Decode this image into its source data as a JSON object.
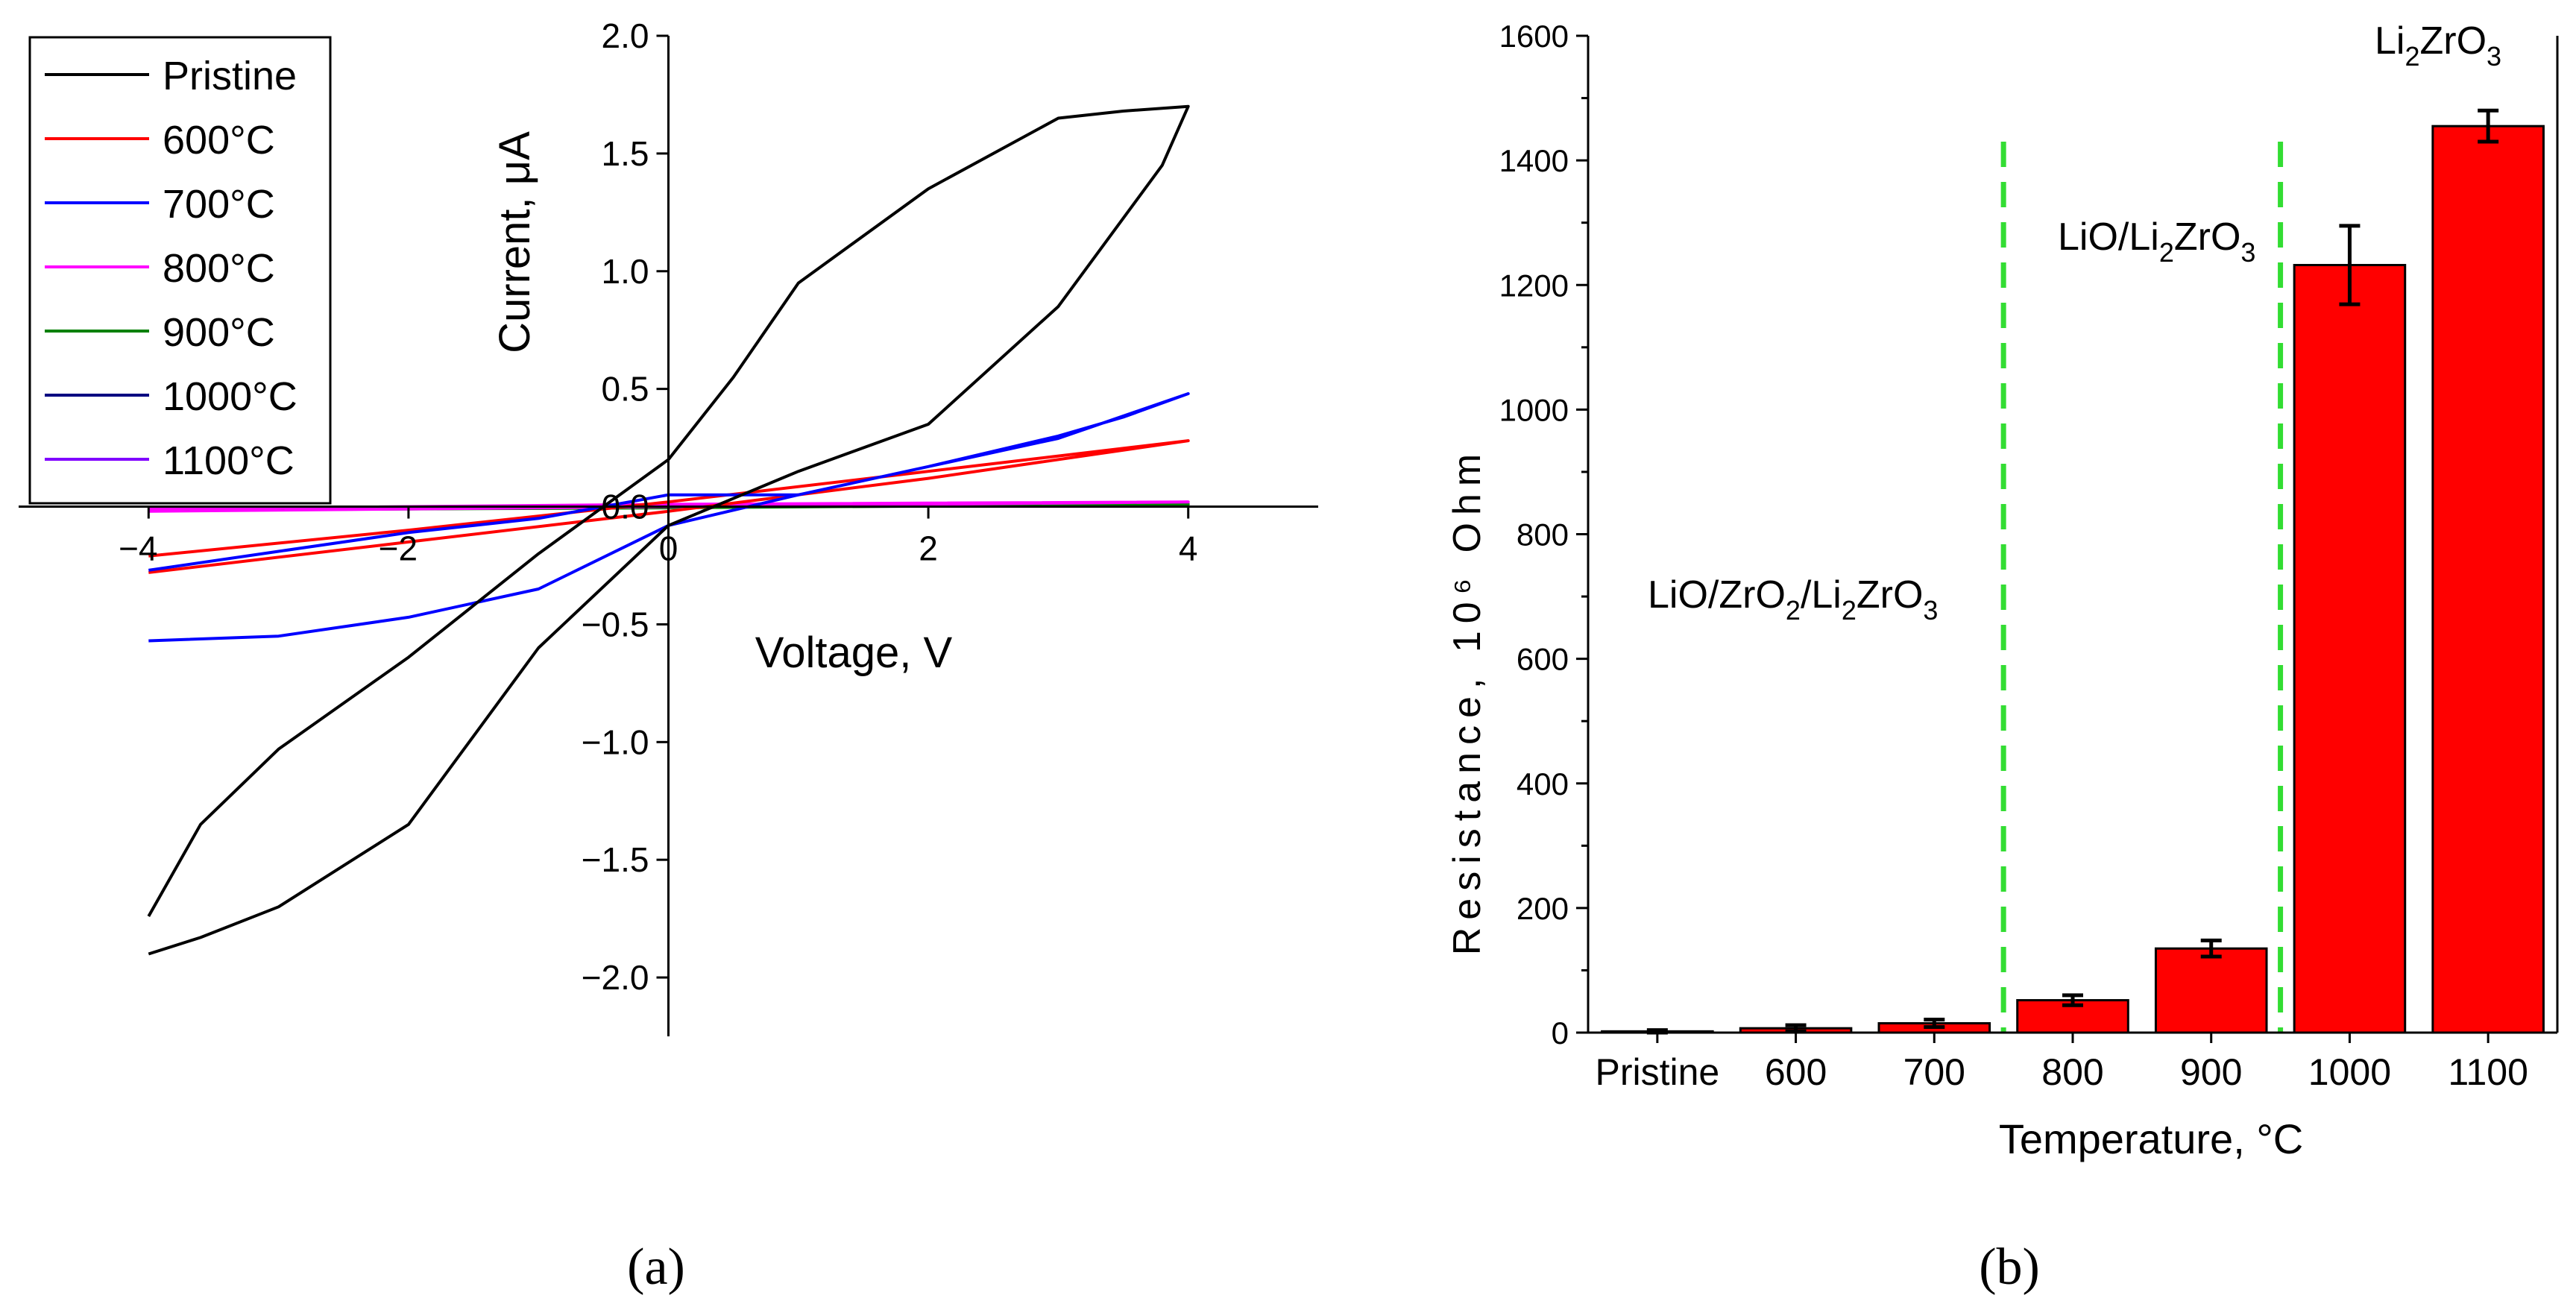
{
  "colors": {
    "pristine": "#000000",
    "c600": "#ff0000",
    "c700": "#0000ff",
    "c800": "#ff00ff",
    "c900": "#008000",
    "c1000": "#000080",
    "c1100": "#8000ff",
    "bar_fill": "#ff0000",
    "divider": "#33dd33"
  },
  "chart_data": [
    {
      "panel": "a",
      "caption": "(a)",
      "type": "line",
      "xlabel": "Voltage, V",
      "ylabel": "Current, μA",
      "xlim": [
        -5,
        5
      ],
      "ylim": [
        -2.25,
        2.0
      ],
      "xticks": [
        -4,
        -2,
        0,
        2,
        4
      ],
      "xtick_labels": [
        "−4",
        "−2",
        "0",
        "2",
        "4"
      ],
      "yticks": [
        2.0,
        1.5,
        1.0,
        0.5,
        0.0,
        -0.5,
        -1.0,
        -1.5,
        -2.0
      ],
      "ytick_labels": [
        "2.0",
        "1.5",
        "1.0",
        "0.5",
        "0.0",
        "−0.5",
        "−1.0",
        "−1.5",
        "−2.0"
      ],
      "legend_position": "top-left",
      "series": [
        {
          "name": "Pristine",
          "color_key": "pristine",
          "x": [
            -4,
            -3.6,
            -3,
            -2,
            -1,
            -0.5,
            0,
            0.5,
            1,
            2,
            3,
            3.5,
            4,
            3.8,
            3,
            2,
            1,
            0,
            -1,
            -2,
            -3,
            -3.6,
            -4
          ],
          "y": [
            -1.74,
            -1.35,
            -1.03,
            -0.64,
            -0.2,
            0.0,
            0.2,
            0.55,
            0.95,
            1.35,
            1.65,
            1.68,
            1.7,
            1.45,
            0.85,
            0.35,
            0.15,
            -0.08,
            -0.6,
            -1.35,
            -1.7,
            -1.83,
            -1.9
          ]
        },
        {
          "name": "600°C",
          "color_key": "c600",
          "x": [
            -4,
            -2,
            0,
            2,
            4,
            2,
            0,
            -2,
            -4
          ],
          "y": [
            -0.28,
            -0.15,
            -0.02,
            0.12,
            0.28,
            0.15,
            0.02,
            -0.1,
            -0.21
          ]
        },
        {
          "name": "700°C",
          "color_key": "c700",
          "x": [
            -4,
            -3,
            -2,
            -1,
            0,
            1,
            2,
            3,
            4,
            3.5,
            3,
            2,
            1,
            0,
            -0.5,
            -1,
            -2,
            -3,
            -4
          ],
          "y": [
            -0.57,
            -0.55,
            -0.47,
            -0.35,
            -0.08,
            0.05,
            0.17,
            0.29,
            0.48,
            0.38,
            0.3,
            0.17,
            0.05,
            0.05,
            0.0,
            -0.05,
            -0.11,
            -0.19,
            -0.27
          ]
        },
        {
          "name": "800°C",
          "color_key": "c800",
          "x": [
            -4,
            0,
            4,
            0,
            -4
          ],
          "y": [
            -0.02,
            0.0,
            0.02,
            0.01,
            -0.01
          ]
        },
        {
          "name": "900°C",
          "color_key": "c900",
          "x": [
            -4,
            0,
            4,
            0,
            -4
          ],
          "y": [
            -0.015,
            -0.005,
            0.01,
            0.0,
            -0.01
          ]
        },
        {
          "name": "1000°C",
          "color_key": "c1000",
          "x": [
            -4,
            0,
            4
          ],
          "y": [
            -0.005,
            0.0,
            0.005
          ]
        },
        {
          "name": "1100°C",
          "color_key": "c1100",
          "x": [
            -4,
            0,
            4
          ],
          "y": [
            -0.003,
            0.0,
            0.003
          ]
        }
      ]
    },
    {
      "panel": "b",
      "caption": "(b)",
      "type": "bar",
      "xlabel": "Temperature, °C",
      "ylabel": "Resistance, 10⁶ Ohm",
      "ylim": [
        0,
        1600
      ],
      "yticks": [
        0,
        200,
        400,
        600,
        800,
        1000,
        1200,
        1400,
        1600
      ],
      "categories": [
        "Pristine",
        "600",
        "700",
        "800",
        "900",
        "1000",
        "1100"
      ],
      "values": [
        2,
        7,
        15,
        52,
        135,
        1232,
        1455
      ],
      "errors": [
        2,
        5,
        6,
        8,
        13,
        63,
        25
      ],
      "region_dividers_after_category_index": [
        2,
        4
      ],
      "annotations": [
        {
          "text": "LiO/ZrO2/Li2ZrO3",
          "category_span": "Pristine–700",
          "value": 685
        },
        {
          "text": "LiO/Li2ZrO3",
          "category_span": "800–900",
          "value": 1250
        },
        {
          "text": "Li2ZrO3",
          "category_span": "1000–1100",
          "value": 1565
        }
      ]
    }
  ]
}
